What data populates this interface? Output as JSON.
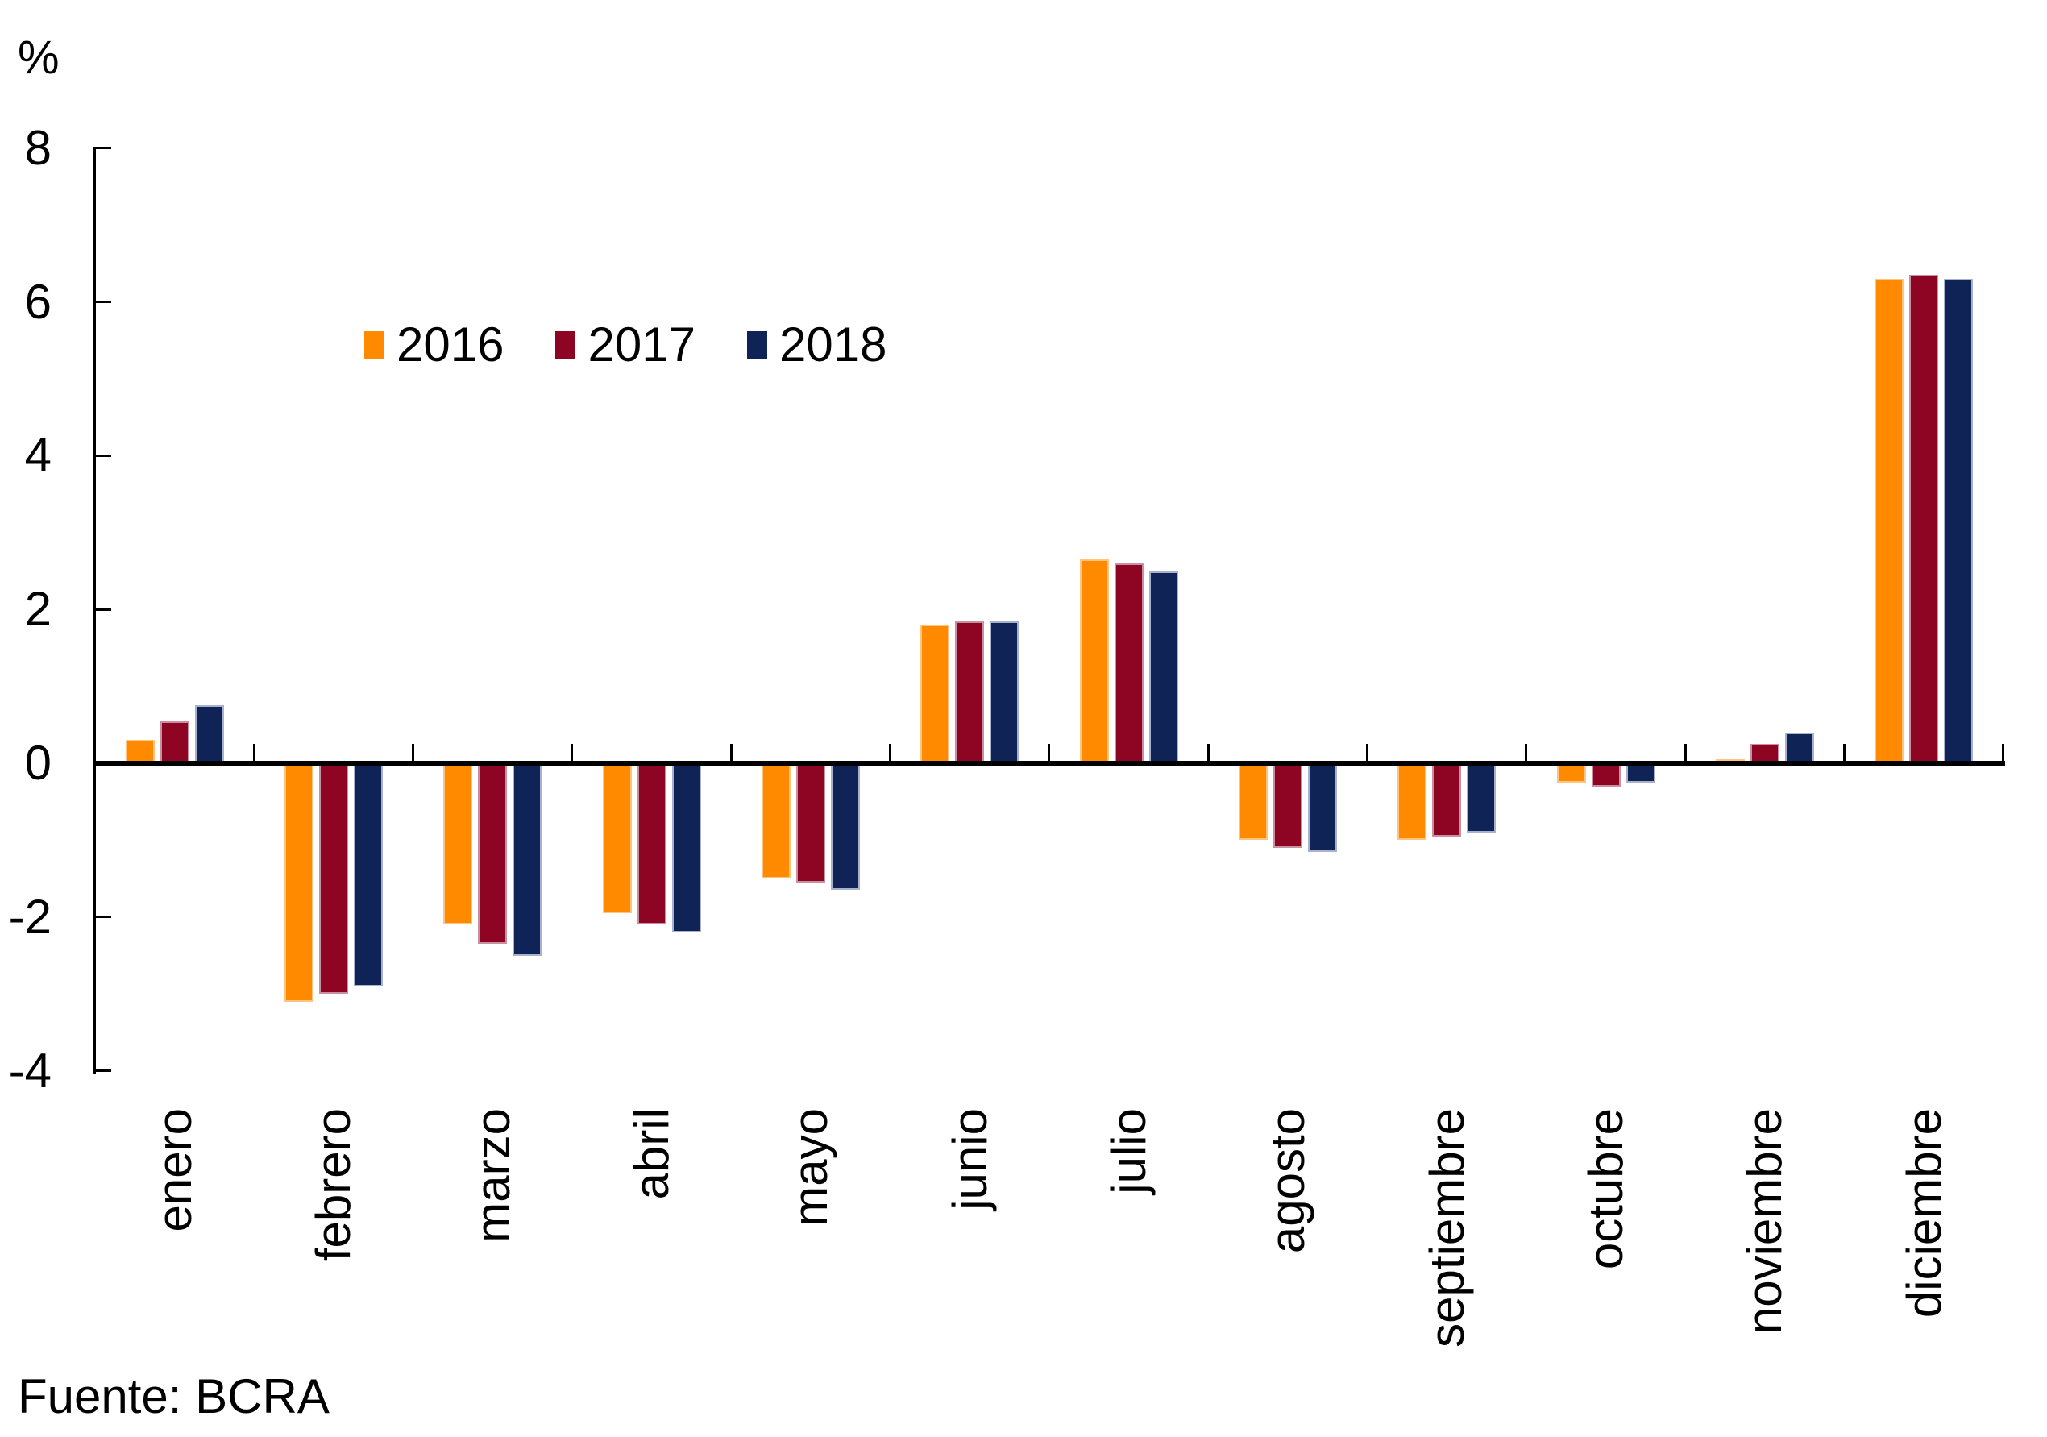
{
  "chart_data": {
    "type": "bar",
    "title": "",
    "ylabel": "%",
    "xlabel": "",
    "grid": false,
    "legend_position": "inside-top-left",
    "ylim": [
      -4,
      8
    ],
    "y_ticks": [
      8,
      6,
      4,
      2,
      0,
      -2,
      -4
    ],
    "categories": [
      "enero",
      "febrero",
      "marzo",
      "abril",
      "mayo",
      "junio",
      "julio",
      "agosto",
      "septiembre",
      "octubre",
      "noviembre",
      "diciembre"
    ],
    "series": [
      {
        "name": "2016",
        "color": "#FF8A00",
        "border_color": "#FFC480",
        "values": [
          0.3,
          -3.1,
          -2.1,
          -1.95,
          -1.5,
          1.8,
          2.65,
          -1.0,
          -1.0,
          -0.25,
          0.05,
          6.3
        ]
      },
      {
        "name": "2017",
        "color": "#8E0423",
        "border_color": "#C9909F",
        "values": [
          0.55,
          -3.0,
          -2.35,
          -2.1,
          -1.55,
          1.85,
          2.6,
          -1.1,
          -0.95,
          -0.3,
          0.25,
          6.35
        ]
      },
      {
        "name": "2018",
        "color": "#0F2356",
        "border_color": "#A8B2CE",
        "values": [
          0.75,
          -2.9,
          -2.5,
          -2.2,
          -1.65,
          1.85,
          2.5,
          -1.15,
          -0.9,
          -0.25,
          0.4,
          6.3
        ]
      }
    ],
    "axis_color": "#000000"
  },
  "footer": {
    "source": "Fuente: BCRA"
  }
}
